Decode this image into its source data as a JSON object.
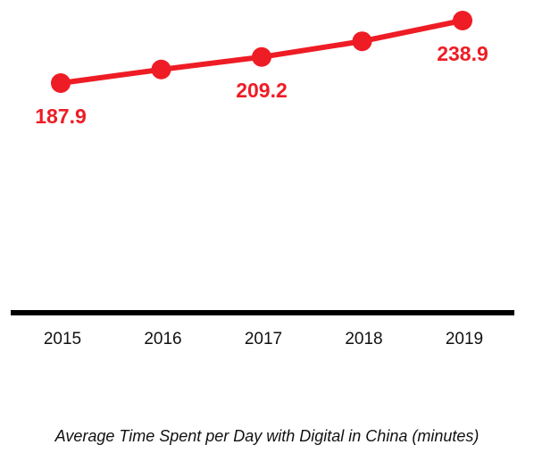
{
  "chart_data": {
    "type": "line",
    "x": [
      "2015",
      "2016",
      "2017",
      "2018",
      "2019"
    ],
    "series": [
      {
        "values": [
          187.9,
          199.0,
          209.2,
          222.0,
          238.9
        ]
      }
    ],
    "data_labels": [
      {
        "index": 0,
        "text": "187.9"
      },
      {
        "index": 2,
        "text": "209.2"
      },
      {
        "index": 4,
        "text": "238.9"
      }
    ],
    "line_color": "#ee1c25",
    "axis_color": "#000000",
    "grid": false,
    "caption": "Average Time Spent per Day with Digital in China (minutes)"
  }
}
